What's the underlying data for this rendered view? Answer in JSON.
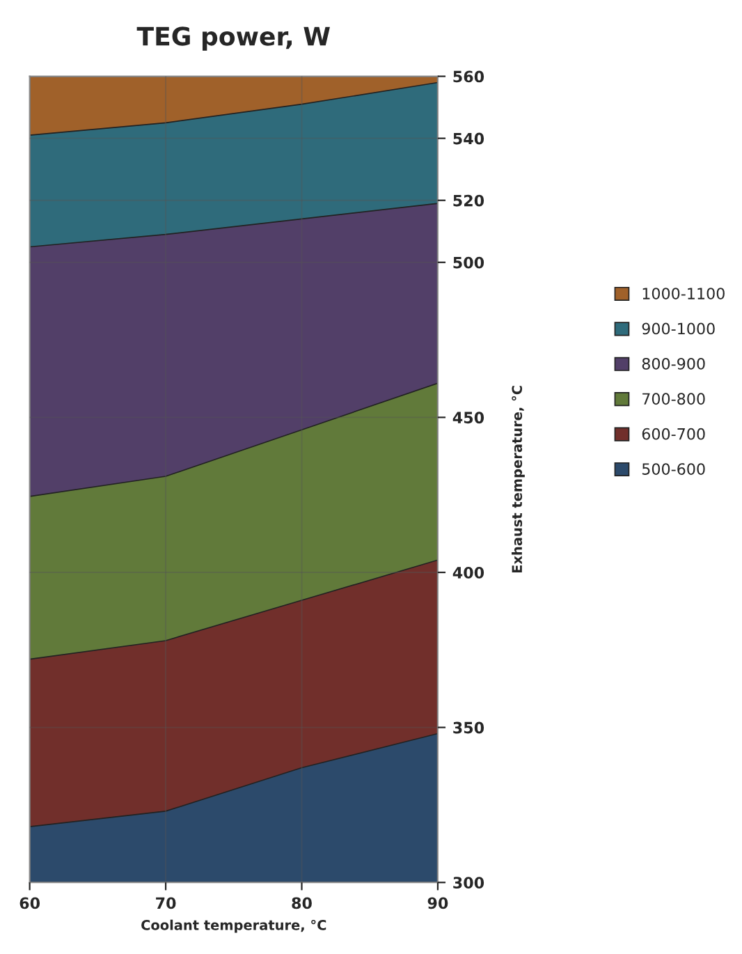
{
  "chart_data": {
    "type": "area",
    "title": "TEG power, W",
    "xlabel": "Coolant temperature, °C",
    "ylabel": "Exhaust temperature, °C",
    "x": [
      60,
      70,
      80,
      90
    ],
    "xlim": [
      60,
      90
    ],
    "xticks": [
      60,
      70,
      80,
      90
    ],
    "ylim": [
      300,
      560
    ],
    "yticks": [
      300,
      350,
      400,
      450,
      500,
      520,
      540,
      560
    ],
    "series": [
      {
        "name": "1000-1100",
        "color": "#a0612a",
        "values": [
          560,
          560,
          560,
          560
        ]
      },
      {
        "name": "900-1000",
        "color": "#2f6b7b",
        "values": [
          541,
          545,
          551,
          558
        ]
      },
      {
        "name": "800-900",
        "color": "#523f68",
        "values": [
          505,
          509,
          514,
          519
        ]
      },
      {
        "name": "700-800",
        "color": "#617a3a",
        "values": [
          424.5,
          431,
          446,
          461
        ]
      },
      {
        "name": "600-700",
        "color": "#712f2b",
        "values": [
          372,
          378,
          391,
          404
        ]
      },
      {
        "name": "500-600",
        "color": "#2c4a6b",
        "values": [
          318,
          323,
          337,
          348
        ]
      }
    ],
    "grid": true,
    "legend": "right"
  }
}
